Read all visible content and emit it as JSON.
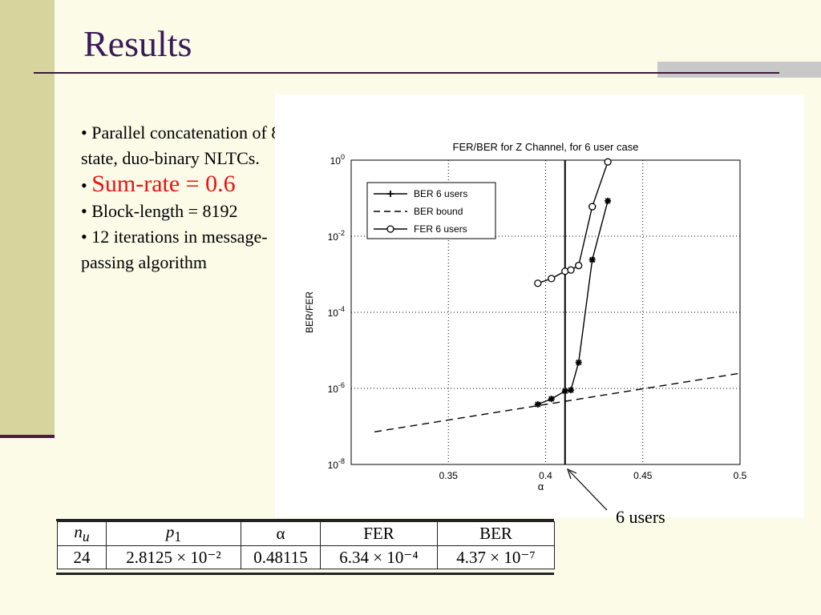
{
  "slide": {
    "title": "Results"
  },
  "bullets": [
    {
      "text": "• Parallel concatenation of 8-state, duo-binary NLTCs."
    },
    {
      "prefix": "• ",
      "text": "Sum-rate = 0.6"
    },
    {
      "text": "• Block-length = 8192"
    },
    {
      "text": "• 12 iterations in message-passing algorithm"
    }
  ],
  "annotation": {
    "text": "6 users"
  },
  "table": {
    "headers": [
      "n_u",
      "p_1",
      "α",
      "FER",
      "BER"
    ],
    "row": [
      "24",
      "2.8125 × 10⁻²",
      "0.48115",
      "6.34 × 10⁻⁴",
      "4.37 × 10⁻⁷"
    ]
  },
  "colors": {
    "accent_red": "#EE1111",
    "sidebar": "#D7D49E",
    "title": "#3A1A5A"
  },
  "chart_data": {
    "type": "line",
    "title": "FER/BER for Z Channel, for 6 user case",
    "xlabel": "α",
    "ylabel": "BER/FER",
    "xlim": [
      0.3,
      0.5
    ],
    "ylim_log10": [
      -8,
      0
    ],
    "x_ticks": [
      "0.35",
      "0.4",
      "0.45",
      "0.5"
    ],
    "x_tick_values": [
      0.35,
      0.4,
      0.45,
      0.5
    ],
    "y_tick_exponents": [
      0,
      -2,
      -4,
      -6,
      -8
    ],
    "grid": true,
    "legend_position": "top-left",
    "vertical_line_x": 0.41,
    "series": [
      {
        "name": "BER 6 users",
        "style": "solid-star",
        "x": [
          0.396,
          0.403,
          0.41,
          0.413,
          0.417,
          0.424,
          0.432
        ],
        "y": [
          3.8e-07,
          5.3e-07,
          8.5e-07,
          9e-07,
          4.8e-06,
          0.0024,
          0.085
        ]
      },
      {
        "name": "BER bound",
        "style": "dashed",
        "x": [
          0.312,
          0.5
        ],
        "y": [
          7.2e-08,
          2.5e-06
        ]
      },
      {
        "name": "FER 6 users",
        "style": "solid-circle",
        "x": [
          0.396,
          0.403,
          0.41,
          0.413,
          0.417,
          0.424,
          0.432
        ],
        "y": [
          0.00058,
          0.00077,
          0.0012,
          0.0013,
          0.0017,
          0.06,
          0.9
        ]
      }
    ]
  }
}
